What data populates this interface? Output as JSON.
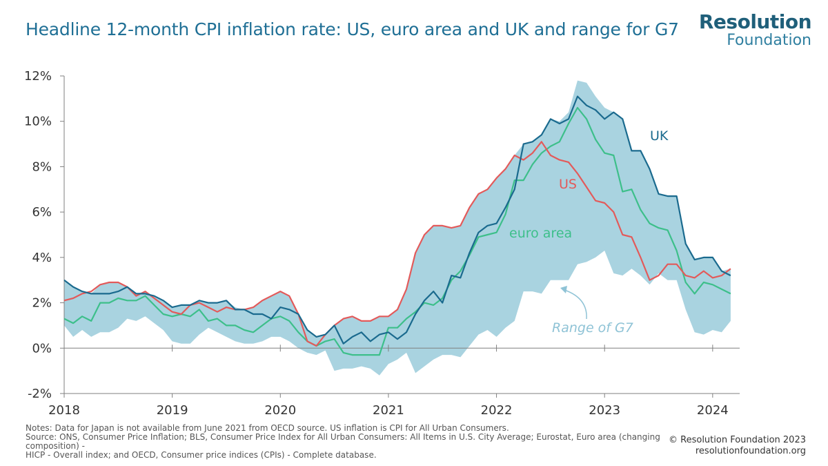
{
  "title": "Headline 12-month CPI inflation rate: US, euro area and UK and range for G7",
  "logo": {
    "line1": "Resolution",
    "line2": "Foundation"
  },
  "footer": {
    "notes": "Notes: Data for Japan is not available from June 2021 from OECD source. US inflation is CPI for All Urban Consumers.",
    "source1": "Source: ONS, Consumer Price Inflation; BLS, Consumer Price Index for All Urban Consumers: All Items in U.S. City Average; Eurostat, Euro area (changing composition) -",
    "source2": "HICP - Overall index; and OECD, Consumer price indices (CPIs) - Complete database.",
    "copyright": "© Resolution Foundation 2023",
    "website": "resolutionfoundation.org"
  },
  "colors": {
    "title": "#1f6f95",
    "uk": "#1a6a8e",
    "us": "#e35a5a",
    "euro_area": "#3dbf8a",
    "range": "#a9d3e0",
    "axis": "#7f7f7f",
    "range_label": "#8fc3d6"
  },
  "chart_data": {
    "type": "line",
    "x_start": "2018-01",
    "x_frequency": "monthly",
    "xlim": [
      2018,
      2024.25
    ],
    "ylim": [
      -2,
      12
    ],
    "y_ticks": [
      -2,
      0,
      2,
      4,
      6,
      8,
      10,
      12
    ],
    "y_tick_labels": [
      "-2%",
      "0%",
      "2%",
      "4%",
      "6%",
      "8%",
      "10%",
      "12%"
    ],
    "x_ticks": [
      2018,
      2019,
      2020,
      2021,
      2022,
      2023,
      2024
    ],
    "x_tick_labels": [
      "2018",
      "2019",
      "2020",
      "2021",
      "2022",
      "2023",
      "2024"
    ],
    "grid": false,
    "series": [
      {
        "name": "UK",
        "values": [
          3.0,
          2.7,
          2.5,
          2.4,
          2.4,
          2.4,
          2.5,
          2.7,
          2.4,
          2.4,
          2.3,
          2.1,
          1.8,
          1.9,
          1.9,
          2.1,
          2.0,
          2.0,
          2.1,
          1.7,
          1.7,
          1.5,
          1.5,
          1.3,
          1.8,
          1.7,
          1.5,
          0.8,
          0.5,
          0.6,
          1.0,
          0.2,
          0.5,
          0.7,
          0.3,
          0.6,
          0.7,
          0.4,
          0.7,
          1.5,
          2.1,
          2.5,
          2.0,
          3.2,
          3.1,
          4.2,
          5.1,
          5.4,
          5.5,
          6.2,
          7.0,
          9.0,
          9.1,
          9.4,
          10.1,
          9.9,
          10.1,
          11.1,
          10.7,
          10.5,
          10.1,
          10.4,
          10.1,
          8.7,
          8.7,
          7.9,
          6.8,
          6.7,
          6.7,
          4.6,
          3.9,
          4.0,
          4.0,
          3.4,
          3.2
        ]
      },
      {
        "name": "US",
        "values": [
          2.1,
          2.2,
          2.4,
          2.5,
          2.8,
          2.9,
          2.9,
          2.7,
          2.3,
          2.5,
          2.2,
          1.9,
          1.6,
          1.5,
          1.9,
          2.0,
          1.8,
          1.6,
          1.8,
          1.7,
          1.7,
          1.8,
          2.1,
          2.3,
          2.5,
          2.3,
          1.5,
          0.3,
          0.1,
          0.6,
          1.0,
          1.3,
          1.4,
          1.2,
          1.2,
          1.4,
          1.4,
          1.7,
          2.6,
          4.2,
          5.0,
          5.4,
          5.4,
          5.3,
          5.4,
          6.2,
          6.8,
          7.0,
          7.5,
          7.9,
          8.5,
          8.3,
          8.6,
          9.1,
          8.5,
          8.3,
          8.2,
          7.7,
          7.1,
          6.5,
          6.4,
          6.0,
          5.0,
          4.9,
          4.0,
          3.0,
          3.2,
          3.7,
          3.7,
          3.2,
          3.1,
          3.4,
          3.1,
          3.2,
          3.5
        ]
      },
      {
        "name": "euro area",
        "values": [
          1.3,
          1.1,
          1.4,
          1.2,
          2.0,
          2.0,
          2.2,
          2.1,
          2.1,
          2.3,
          1.9,
          1.5,
          1.4,
          1.5,
          1.4,
          1.7,
          1.2,
          1.3,
          1.0,
          1.0,
          0.8,
          0.7,
          1.0,
          1.3,
          1.4,
          1.2,
          0.7,
          0.3,
          0.1,
          0.3,
          0.4,
          -0.2,
          -0.3,
          -0.3,
          -0.3,
          -0.3,
          0.9,
          0.9,
          1.3,
          1.6,
          2.0,
          1.9,
          2.2,
          3.0,
          3.4,
          4.1,
          4.9,
          5.0,
          5.1,
          5.9,
          7.4,
          7.4,
          8.1,
          8.6,
          8.9,
          9.1,
          9.9,
          10.6,
          10.1,
          9.2,
          8.6,
          8.5,
          6.9,
          7.0,
          6.1,
          5.5,
          5.3,
          5.2,
          4.3,
          2.9,
          2.4,
          2.9,
          2.8,
          2.6,
          2.4
        ]
      }
    ],
    "range_band": {
      "name": "Range of G7",
      "min": [
        1.0,
        0.5,
        0.8,
        0.5,
        0.7,
        0.7,
        0.9,
        1.3,
        1.2,
        1.4,
        1.1,
        0.8,
        0.3,
        0.2,
        0.2,
        0.6,
        0.9,
        0.7,
        0.5,
        0.3,
        0.2,
        0.2,
        0.3,
        0.5,
        0.5,
        0.3,
        0.0,
        -0.2,
        -0.3,
        -0.1,
        -1.0,
        -0.9,
        -0.9,
        -0.8,
        -0.9,
        -1.2,
        -0.7,
        -0.5,
        -0.2,
        -1.1,
        -0.8,
        -0.5,
        -0.3,
        -0.3,
        -0.4,
        0.1,
        0.6,
        0.8,
        0.5,
        0.9,
        1.2,
        2.5,
        2.5,
        2.4,
        3.0,
        3.0,
        3.0,
        3.7,
        3.8,
        4.0,
        4.3,
        3.3,
        3.2,
        3.5,
        3.2,
        2.8,
        3.3,
        3.0,
        3.0,
        1.7,
        0.7,
        0.6,
        0.8,
        0.7,
        1.2
      ],
      "max": [
        3.0,
        2.7,
        2.5,
        2.4,
        2.8,
        2.9,
        2.9,
        2.7,
        2.4,
        2.5,
        2.3,
        2.1,
        1.8,
        1.9,
        1.9,
        2.1,
        2.0,
        2.0,
        2.1,
        1.8,
        1.7,
        1.8,
        2.1,
        2.3,
        2.5,
        2.3,
        1.5,
        0.8,
        0.5,
        0.6,
        1.0,
        1.3,
        1.4,
        1.2,
        1.2,
        1.4,
        1.4,
        1.7,
        2.6,
        4.2,
        5.0,
        5.4,
        5.4,
        5.3,
        5.4,
        6.2,
        6.8,
        7.0,
        7.5,
        7.9,
        8.5,
        9.0,
        9.1,
        9.4,
        10.1,
        10.0,
        10.4,
        11.8,
        11.7,
        11.1,
        10.6,
        10.4,
        10.1,
        8.7,
        8.7,
        7.9,
        6.8,
        6.7,
        6.7,
        4.6,
        3.9,
        4.0,
        4.0,
        3.4,
        3.5
      ]
    },
    "annotations": [
      {
        "text": "UK",
        "series": "UK"
      },
      {
        "text": "US",
        "series": "US"
      },
      {
        "text": "euro area",
        "series": "euro area"
      },
      {
        "text": "Range of G7",
        "series": "Range of G7"
      }
    ]
  }
}
